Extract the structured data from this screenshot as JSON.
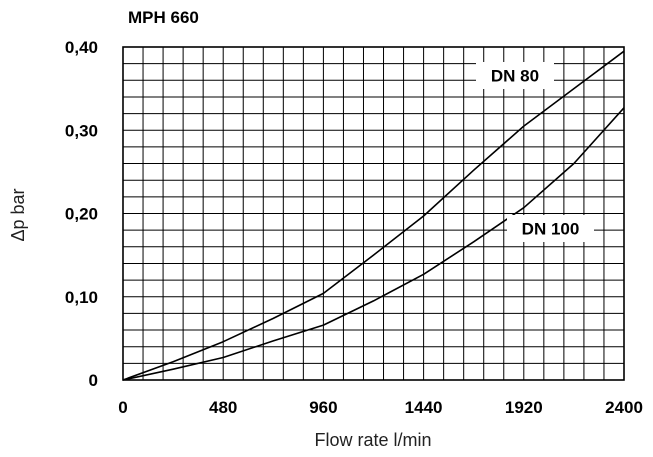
{
  "chart_data": {
    "type": "line",
    "title": "MPH 660",
    "xlabel": "Flow rate l/min",
    "ylabel": "Δp bar",
    "xlim": [
      0,
      2400
    ],
    "ylim": [
      0,
      0.4
    ],
    "x_ticks": [
      0,
      480,
      960,
      1440,
      1920,
      2400
    ],
    "x_tick_labels": [
      "0",
      "480",
      "960",
      "1440",
      "1920",
      "2400"
    ],
    "y_ticks": [
      0,
      0.1,
      0.2,
      0.3,
      0.4
    ],
    "y_tick_labels": [
      "0",
      "0,10",
      "0,20",
      "0,30",
      "0,40"
    ],
    "grid": true,
    "legend": "none (series labelled directly on lines)",
    "series": [
      {
        "name": "DN 80",
        "x": [
          0,
          240,
          480,
          720,
          960,
          1200,
          1440,
          1680,
          1920,
          2160,
          2400
        ],
        "y": [
          0,
          0.022,
          0.046,
          0.074,
          0.104,
          0.15,
          0.197,
          0.252,
          0.305,
          0.35,
          0.395
        ]
      },
      {
        "name": "DN 100",
        "x": [
          0,
          240,
          480,
          720,
          960,
          1200,
          1440,
          1680,
          1920,
          2160,
          2400
        ],
        "y": [
          0,
          0.013,
          0.027,
          0.047,
          0.066,
          0.095,
          0.127,
          0.166,
          0.207,
          0.26,
          0.327
        ]
      }
    ]
  }
}
